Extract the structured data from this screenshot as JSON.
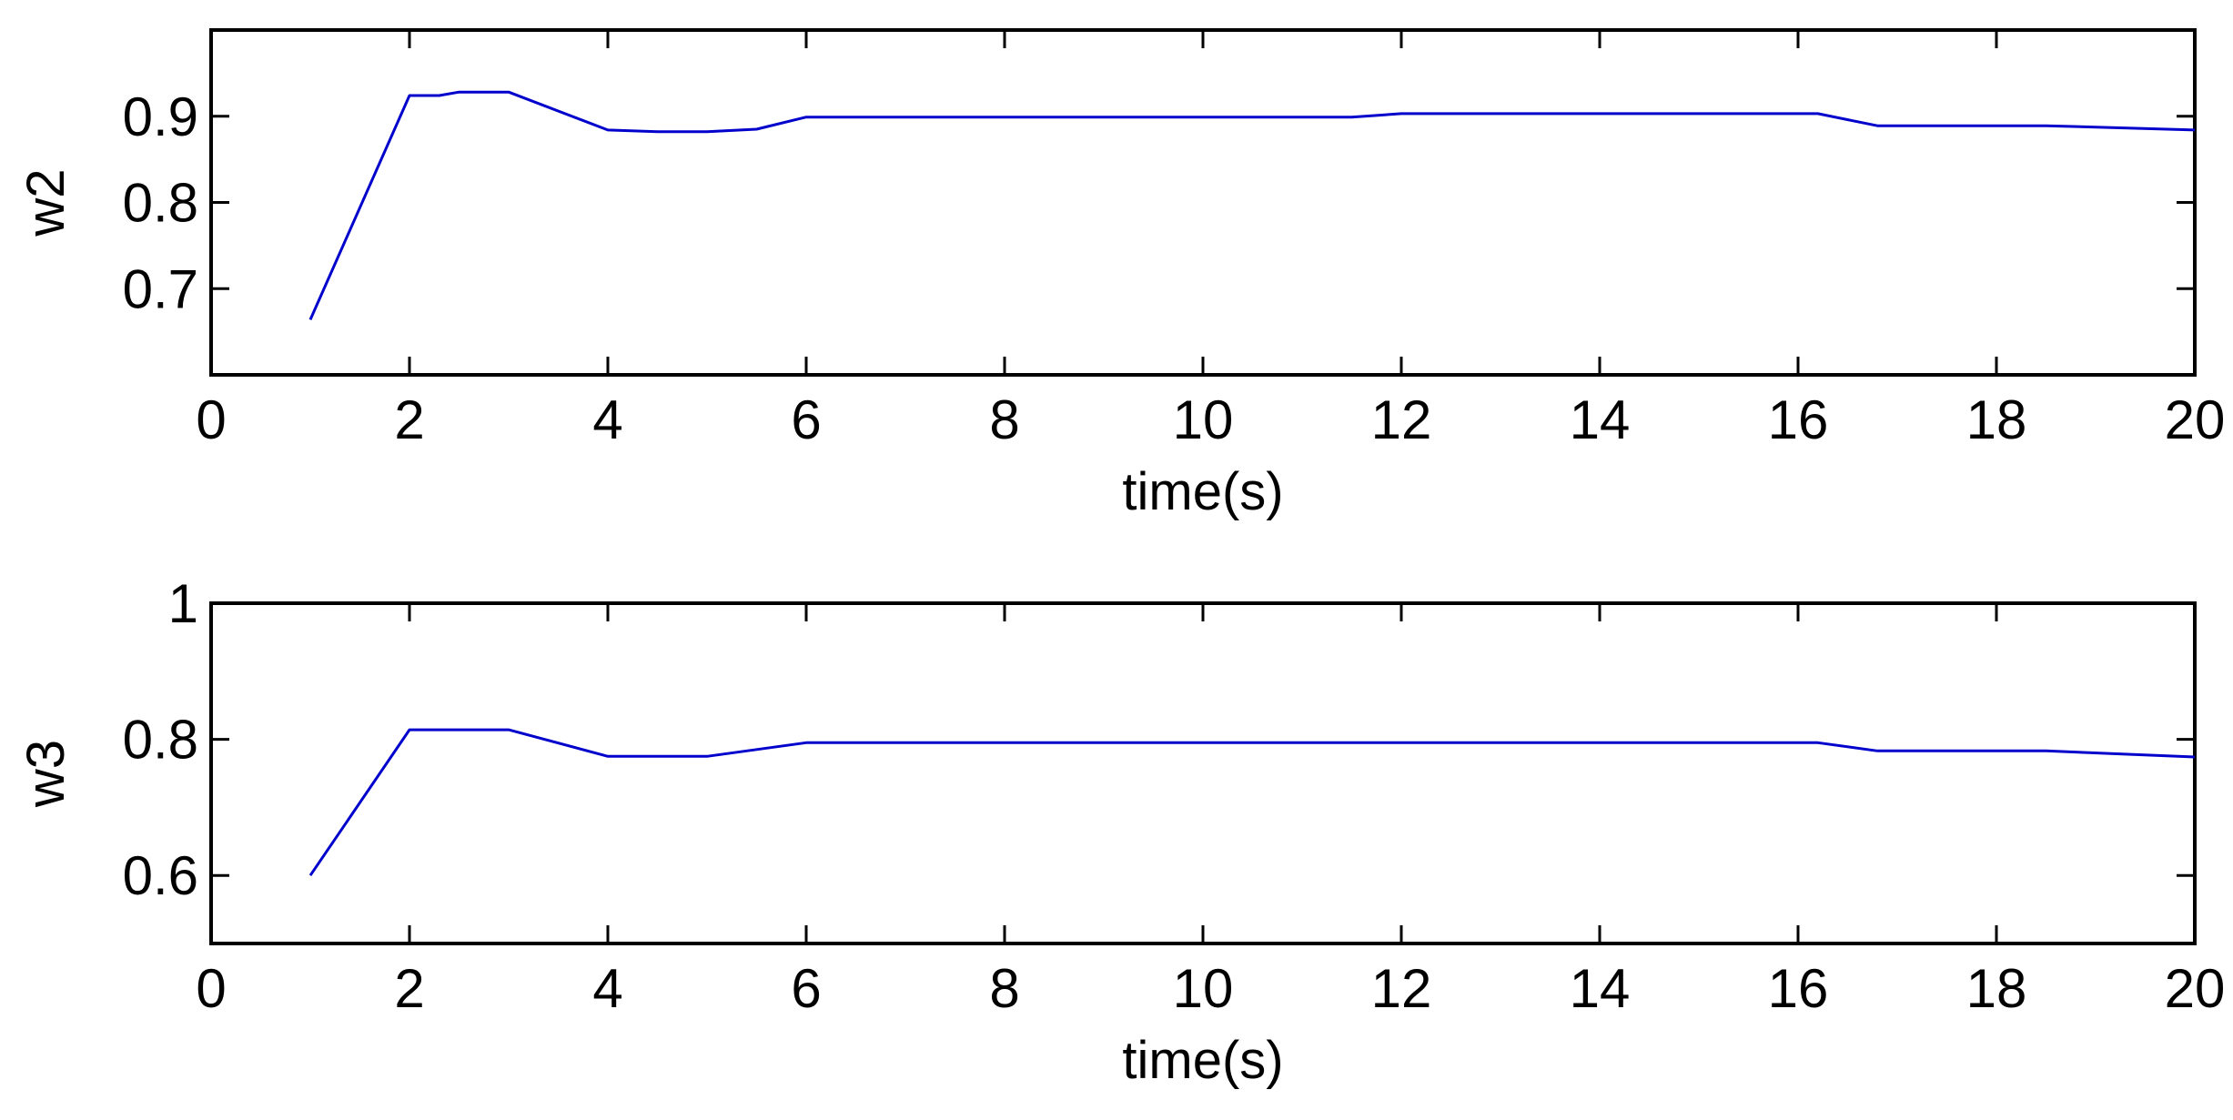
{
  "chart_data": [
    {
      "type": "line",
      "xlabel": "time(s)",
      "ylabel": "w2",
      "xlim": [
        0,
        20
      ],
      "ylim": [
        0.6,
        1.0
      ],
      "xticks": [
        0,
        2,
        4,
        6,
        8,
        10,
        12,
        14,
        16,
        18,
        20
      ],
      "xtick_labels": [
        "0",
        "2",
        "4",
        "6",
        "8",
        "10",
        "12",
        "14",
        "16",
        "18",
        "20"
      ],
      "yticks": [
        0.7,
        0.8,
        0.9
      ],
      "ytick_labels": [
        "0.7",
        "0.8",
        "0.9"
      ],
      "grid": false,
      "line_color": "#0000cc",
      "series": [
        {
          "x": [
            1.0,
            2.0,
            2.3,
            2.5,
            3.0,
            4.0,
            4.5,
            5.0,
            5.5,
            6.0,
            11.5,
            12.0,
            16.2,
            16.8,
            18.5,
            20.0
          ],
          "y": [
            0.664,
            0.924,
            0.924,
            0.928,
            0.928,
            0.884,
            0.882,
            0.882,
            0.885,
            0.899,
            0.899,
            0.903,
            0.903,
            0.889,
            0.889,
            0.884
          ]
        }
      ]
    },
    {
      "type": "line",
      "xlabel": "time(s)",
      "ylabel": "w3",
      "xlim": [
        0,
        20
      ],
      "ylim": [
        0.5,
        1.0
      ],
      "xticks": [
        0,
        2,
        4,
        6,
        8,
        10,
        12,
        14,
        16,
        18,
        20
      ],
      "xtick_labels": [
        "0",
        "2",
        "4",
        "6",
        "8",
        "10",
        "12",
        "14",
        "16",
        "18",
        "20"
      ],
      "yticks": [
        0.6,
        0.8,
        1.0
      ],
      "ytick_labels": [
        "0.6",
        "0.8",
        "1"
      ],
      "grid": false,
      "line_color": "#0000cc",
      "series": [
        {
          "x": [
            1.0,
            2.0,
            3.0,
            4.0,
            5.0,
            6.0,
            16.2,
            16.8,
            18.5,
            20.0
          ],
          "y": [
            0.6,
            0.814,
            0.814,
            0.775,
            0.775,
            0.795,
            0.795,
            0.783,
            0.783,
            0.774
          ]
        }
      ]
    }
  ]
}
